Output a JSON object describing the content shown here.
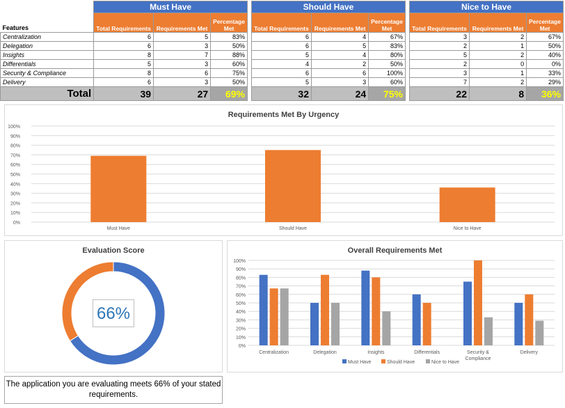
{
  "table": {
    "features_label": "Features",
    "rows": [
      "Centralization",
      "Delegation",
      "Insights",
      "Differentials",
      "Security & Compliance",
      "Delivery"
    ],
    "total_label": "Total",
    "sub_headers": [
      "Total Requirements",
      "Requirements Met",
      "Percentage Met"
    ],
    "groups": [
      {
        "name": "Must Have",
        "total": [
          6,
          6,
          8,
          5,
          8,
          6
        ],
        "met": [
          5,
          3,
          7,
          3,
          6,
          3
        ],
        "pct": [
          "83%",
          "50%",
          "88%",
          "60%",
          "75%",
          "50%"
        ],
        "sum_total": "39",
        "sum_met": "27",
        "sum_pct": "69%"
      },
      {
        "name": "Should Have",
        "total": [
          6,
          6,
          5,
          4,
          6,
          5
        ],
        "met": [
          4,
          5,
          4,
          2,
          6,
          3
        ],
        "pct": [
          "67%",
          "83%",
          "80%",
          "50%",
          "100%",
          "60%"
        ],
        "sum_total": "32",
        "sum_met": "24",
        "sum_pct": "75%"
      },
      {
        "name": "Nice to Have",
        "total": [
          3,
          2,
          5,
          2,
          3,
          7
        ],
        "met": [
          2,
          1,
          2,
          0,
          1,
          2
        ],
        "pct": [
          "67%",
          "50%",
          "40%",
          "0%",
          "33%",
          "29%"
        ],
        "sum_total": "22",
        "sum_met": "8",
        "sum_pct": "36%"
      }
    ]
  },
  "chart_data": [
    {
      "type": "bar",
      "title": "Requirements Met By Urgency",
      "categories": [
        "Must Have",
        "Should Have",
        "Nice to Have"
      ],
      "values": [
        69,
        75,
        36
      ],
      "ylim": [
        0,
        100
      ],
      "yticks": [
        "0%",
        "10%",
        "20%",
        "30%",
        "40%",
        "50%",
        "60%",
        "70%",
        "80%",
        "90%",
        "100%"
      ],
      "color": "#ed7d31",
      "grid": true
    },
    {
      "type": "pie",
      "title": "Evaluation Score",
      "values": [
        66,
        34
      ],
      "colors": [
        "#4472c4",
        "#ed7d31"
      ],
      "center_label": "66%"
    },
    {
      "type": "bar",
      "title": "Overall Requirements Met",
      "categories": [
        "Centralization",
        "Delegation",
        "Insights",
        "Differentials",
        "Security & Compliance",
        "Delivery"
      ],
      "category_lines": [
        [
          "Centralization"
        ],
        [
          "Delegation"
        ],
        [
          "Insights"
        ],
        [
          "Differentials"
        ],
        [
          "Security &",
          "Compliance"
        ],
        [
          "Delivery"
        ]
      ],
      "series": [
        {
          "name": "Must Have",
          "values": [
            83,
            50,
            88,
            60,
            75,
            50
          ],
          "color": "#4472c4"
        },
        {
          "name": "Should Have",
          "values": [
            67,
            83,
            80,
            50,
            100,
            60
          ],
          "color": "#ed7d31"
        },
        {
          "name": "Nice to Have",
          "values": [
            67,
            50,
            40,
            0,
            33,
            29
          ],
          "color": "#a5a5a5"
        }
      ],
      "ylim": [
        0,
        100
      ],
      "yticks": [
        "0%",
        "10%",
        "20%",
        "30%",
        "40%",
        "50%",
        "60%",
        "70%",
        "80%",
        "90%",
        "100%"
      ],
      "legend": "bottom",
      "grid": true
    }
  ],
  "note": "The application you are evaluating meets 66% of your stated requirements."
}
